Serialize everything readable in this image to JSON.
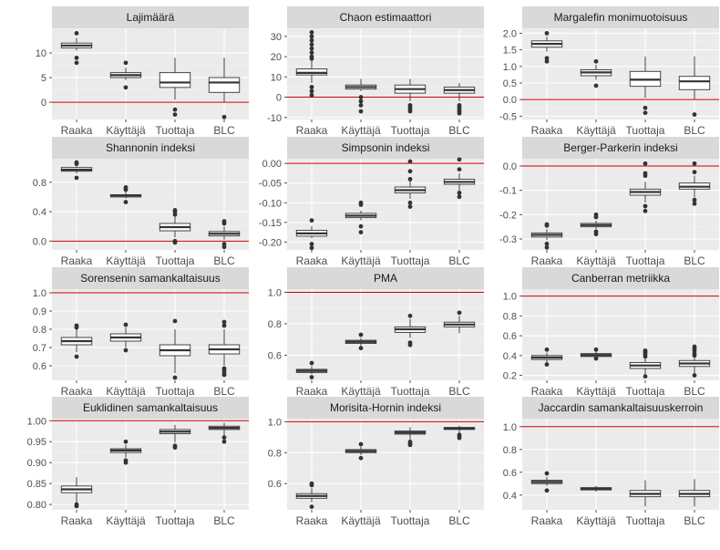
{
  "style": {
    "panel_bg": "#ebebeb",
    "strip_bg": "#d9d9d9",
    "grid_major": "#ffffff",
    "grid_minor": "#f3f3f3",
    "box_fill": "#ffffff",
    "box_line": "#333333",
    "ref_line": "#cc0000",
    "tick_text": "#4d4d4d",
    "strip_text": "#1a1a1a"
  },
  "chart_data": [
    {
      "type": "boxplot",
      "title": "Lajimäärä",
      "categories": [
        "Raaka",
        "Käyttäjä",
        "Tuottaja",
        "BLC"
      ],
      "ylim": [
        -3.5,
        15
      ],
      "yticks": [
        0,
        5,
        10
      ],
      "ytick_labels": [
        "0",
        "5",
        "10"
      ],
      "reference_line": 0,
      "boxes": [
        {
          "min": 10.5,
          "q1": 11,
          "median": 11.5,
          "q3": 12,
          "max": 13,
          "outliers": [
            9,
            8,
            14
          ]
        },
        {
          "min": 4.5,
          "q1": 5,
          "median": 5.5,
          "q3": 6,
          "max": 7,
          "outliers": [
            3,
            8
          ]
        },
        {
          "min": 0.5,
          "q1": 3,
          "median": 4,
          "q3": 6,
          "max": 9,
          "outliers": [
            -1.5,
            -2.5
          ]
        },
        {
          "min": 0,
          "q1": 2,
          "median": 4,
          "q3": 5,
          "max": 9,
          "outliers": [
            -3
          ]
        }
      ]
    },
    {
      "type": "boxplot",
      "title": "Chaon estimaattori",
      "categories": [
        "Raaka",
        "Käyttäjä",
        "Tuottaja",
        "BLC"
      ],
      "ylim": [
        -11,
        34
      ],
      "yticks": [
        -10,
        0,
        10,
        20,
        30
      ],
      "ytick_labels": [
        "-10",
        "0",
        "10",
        "20",
        "30"
      ],
      "reference_line": 0,
      "boxes": [
        {
          "min": 7,
          "q1": 11,
          "median": 12,
          "q3": 14,
          "max": 18,
          "outliers": [
            1,
            3,
            5,
            19,
            20,
            22,
            24,
            26,
            28,
            30,
            32
          ]
        },
        {
          "min": 3,
          "q1": 4,
          "median": 5,
          "q3": 6,
          "max": 9,
          "outliers": [
            0,
            -2,
            -4,
            -7
          ]
        },
        {
          "min": -2,
          "q1": 2,
          "median": 4,
          "q3": 6,
          "max": 9,
          "outliers": [
            -4,
            -5,
            -6,
            -7
          ]
        },
        {
          "min": -2,
          "q1": 2,
          "median": 3.5,
          "q3": 5,
          "max": 7,
          "outliers": [
            -4,
            -5,
            -6,
            -7,
            -8
          ]
        }
      ]
    },
    {
      "type": "boxplot",
      "title": "Margalefin monimuotoisuus",
      "categories": [
        "Raaka",
        "Käyttäjä",
        "Tuottaja",
        "BLC"
      ],
      "ylim": [
        -0.6,
        2.15
      ],
      "yticks": [
        -0.5,
        0,
        0.5,
        1,
        1.5,
        2
      ],
      "ytick_labels": [
        "-0.5",
        "0.0",
        "0.5",
        "1.0",
        "1.5",
        "2.0"
      ],
      "reference_line": 0,
      "boxes": [
        {
          "min": 1.45,
          "q1": 1.58,
          "median": 1.68,
          "q3": 1.77,
          "max": 1.9,
          "outliers": [
            1.25,
            1.15,
            2.0
          ]
        },
        {
          "min": 0.6,
          "q1": 0.72,
          "median": 0.82,
          "q3": 0.9,
          "max": 1.05,
          "outliers": [
            0.42,
            1.15
          ]
        },
        {
          "min": 0.05,
          "q1": 0.4,
          "median": 0.6,
          "q3": 0.85,
          "max": 1.3,
          "outliers": [
            -0.25,
            -0.4
          ]
        },
        {
          "min": 0,
          "q1": 0.3,
          "median": 0.55,
          "q3": 0.7,
          "max": 1.3,
          "outliers": [
            -0.45
          ]
        }
      ]
    },
    {
      "type": "boxplot",
      "title": "Shannonin indeksi",
      "categories": [
        "Raaka",
        "Käyttäjä",
        "Tuottaja",
        "BLC"
      ],
      "ylim": [
        -0.12,
        1.12
      ],
      "yticks": [
        0,
        0.4,
        0.8
      ],
      "ytick_labels": [
        "0.0",
        "0.4",
        "0.8"
      ],
      "reference_line": 0,
      "boxes": [
        {
          "min": 0.92,
          "q1": 0.95,
          "median": 0.97,
          "q3": 1.0,
          "max": 1.02,
          "outliers": [
            0.86,
            1.05,
            1.07
          ]
        },
        {
          "min": 0.58,
          "q1": 0.6,
          "median": 0.62,
          "q3": 0.63,
          "max": 0.67,
          "outliers": [
            0.53,
            0.7,
            0.73
          ]
        },
        {
          "min": 0.05,
          "q1": 0.14,
          "median": 0.19,
          "q3": 0.24,
          "max": 0.33,
          "outliers": [
            0.36,
            0.4,
            0.42,
            0.0,
            -0.02
          ]
        },
        {
          "min": 0.02,
          "q1": 0.07,
          "median": 0.1,
          "q3": 0.13,
          "max": 0.2,
          "outliers": [
            0.24,
            0.27,
            -0.04,
            -0.08
          ]
        }
      ]
    },
    {
      "type": "boxplot",
      "title": "Simpsonin indeksi",
      "categories": [
        "Raaka",
        "Käyttäjä",
        "Tuottaja",
        "BLC"
      ],
      "ylim": [
        -0.22,
        0.012
      ],
      "yticks": [
        -0.2,
        -0.15,
        -0.1,
        -0.05,
        0
      ],
      "ytick_labels": [
        "-0.20",
        "-0.15",
        "-0.10",
        "-0.05",
        "0.00"
      ],
      "reference_line": 0,
      "boxes": [
        {
          "min": -0.19,
          "q1": -0.185,
          "median": -0.178,
          "q3": -0.17,
          "max": -0.16,
          "outliers": [
            -0.145,
            -0.205,
            -0.215
          ]
        },
        {
          "min": -0.145,
          "q1": -0.138,
          "median": -0.133,
          "q3": -0.127,
          "max": -0.12,
          "outliers": [
            -0.1,
            -0.105,
            -0.16,
            -0.175
          ]
        },
        {
          "min": -0.09,
          "q1": -0.075,
          "median": -0.068,
          "q3": -0.06,
          "max": -0.045,
          "outliers": [
            -0.1,
            -0.11,
            -0.04,
            -0.02,
            0.005
          ]
        },
        {
          "min": -0.07,
          "q1": -0.053,
          "median": -0.047,
          "q3": -0.04,
          "max": -0.025,
          "outliers": [
            -0.075,
            -0.085,
            -0.015,
            0.01
          ]
        }
      ]
    },
    {
      "type": "boxplot",
      "title": "Berger-Parkerin indeksi",
      "categories": [
        "Raaka",
        "Käyttäjä",
        "Tuottaja",
        "BLC"
      ],
      "ylim": [
        -0.345,
        0.03
      ],
      "yticks": [
        -0.3,
        -0.2,
        -0.1,
        0
      ],
      "ytick_labels": [
        "-0.3",
        "-0.2",
        "-0.1",
        "0.0"
      ],
      "reference_line": 0,
      "boxes": [
        {
          "min": -0.305,
          "q1": -0.292,
          "median": -0.283,
          "q3": -0.275,
          "max": -0.26,
          "outliers": [
            -0.24,
            -0.245,
            -0.32,
            -0.335
          ]
        },
        {
          "min": -0.26,
          "q1": -0.25,
          "median": -0.243,
          "q3": -0.236,
          "max": -0.225,
          "outliers": [
            -0.2,
            -0.21,
            -0.27,
            -0.28
          ]
        },
        {
          "min": -0.15,
          "q1": -0.12,
          "median": -0.107,
          "q3": -0.095,
          "max": -0.065,
          "outliers": [
            -0.04,
            -0.03,
            0.01,
            -0.165,
            -0.185
          ]
        },
        {
          "min": -0.13,
          "q1": -0.095,
          "median": -0.085,
          "q3": -0.07,
          "max": -0.04,
          "outliers": [
            -0.025,
            0.01,
            -0.14,
            -0.155
          ]
        }
      ]
    },
    {
      "type": "boxplot",
      "title": "Sorensenin samankaltaisuus",
      "categories": [
        "Raaka",
        "Käyttäjä",
        "Tuottaja",
        "BLC"
      ],
      "ylim": [
        0.52,
        1.02
      ],
      "yticks": [
        0.6,
        0.7,
        0.8,
        0.9,
        1
      ],
      "ytick_labels": [
        "0.6",
        "0.7",
        "0.8",
        "0.9",
        "1.0"
      ],
      "reference_line": 1,
      "boxes": [
        {
          "min": 0.675,
          "q1": 0.715,
          "median": 0.735,
          "q3": 0.755,
          "max": 0.8,
          "outliers": [
            0.82,
            0.81,
            0.65
          ]
        },
        {
          "min": 0.7,
          "q1": 0.735,
          "median": 0.755,
          "q3": 0.775,
          "max": 0.81,
          "outliers": [
            0.825,
            0.685
          ]
        },
        {
          "min": 0.56,
          "q1": 0.655,
          "median": 0.685,
          "q3": 0.715,
          "max": 0.8,
          "outliers": [
            0.845,
            0.535
          ]
        },
        {
          "min": 0.6,
          "q1": 0.665,
          "median": 0.69,
          "q3": 0.715,
          "max": 0.8,
          "outliers": [
            0.82,
            0.84,
            0.585,
            0.575,
            0.56,
            0.55
          ]
        }
      ]
    },
    {
      "type": "boxplot",
      "title": "PMA",
      "categories": [
        "Raaka",
        "Käyttäjä",
        "Tuottaja",
        "BLC"
      ],
      "ylim": [
        0.44,
        1.02
      ],
      "yticks": [
        0.6,
        0.8,
        1
      ],
      "ytick_labels": [
        "0.6",
        "0.8",
        "1.0"
      ],
      "reference_line": 1,
      "boxes": [
        {
          "min": 0.48,
          "q1": 0.49,
          "median": 0.5,
          "q3": 0.51,
          "max": 0.53,
          "outliers": [
            0.55,
            0.46
          ]
        },
        {
          "min": 0.66,
          "q1": 0.675,
          "median": 0.685,
          "q3": 0.695,
          "max": 0.71,
          "outliers": [
            0.73,
            0.645
          ]
        },
        {
          "min": 0.71,
          "q1": 0.745,
          "median": 0.765,
          "q3": 0.78,
          "max": 0.83,
          "outliers": [
            0.85,
            0.68,
            0.665
          ]
        },
        {
          "min": 0.74,
          "q1": 0.78,
          "median": 0.795,
          "q3": 0.81,
          "max": 0.85,
          "outliers": [
            0.87
          ]
        }
      ]
    },
    {
      "type": "boxplot",
      "title": "Canberran metriikka",
      "categories": [
        "Raaka",
        "Käyttäjä",
        "Tuottaja",
        "BLC"
      ],
      "ylim": [
        0.15,
        1.07
      ],
      "yticks": [
        0.2,
        0.4,
        0.6,
        0.8,
        1
      ],
      "ytick_labels": [
        "0.2",
        "0.4",
        "0.6",
        "0.8",
        "1.0"
      ],
      "reference_line": 1,
      "boxes": [
        {
          "min": 0.33,
          "q1": 0.36,
          "median": 0.38,
          "q3": 0.4,
          "max": 0.43,
          "outliers": [
            0.46,
            0.31
          ]
        },
        {
          "min": 0.37,
          "q1": 0.39,
          "median": 0.405,
          "q3": 0.42,
          "max": 0.44,
          "outliers": [
            0.46,
            0.37
          ]
        },
        {
          "min": 0.2,
          "q1": 0.27,
          "median": 0.3,
          "q3": 0.33,
          "max": 0.37,
          "outliers": [
            0.39,
            0.41,
            0.43,
            0.44,
            0.45,
            0.19
          ]
        },
        {
          "min": 0.22,
          "q1": 0.29,
          "median": 0.32,
          "q3": 0.35,
          "max": 0.38,
          "outliers": [
            0.4,
            0.42,
            0.45,
            0.47,
            0.49,
            0.2
          ]
        }
      ]
    },
    {
      "type": "boxplot",
      "title": "Euklidinen samankaltaisuus",
      "categories": [
        "Raaka",
        "Käyttäjä",
        "Tuottaja",
        "BLC"
      ],
      "ylim": [
        0.787,
        1.005
      ],
      "yticks": [
        0.8,
        0.85,
        0.9,
        0.95,
        1
      ],
      "ytick_labels": [
        "0.80",
        "0.85",
        "0.90",
        "0.95",
        "1.00"
      ],
      "reference_line": 1,
      "boxes": [
        {
          "min": 0.805,
          "q1": 0.828,
          "median": 0.836,
          "q3": 0.844,
          "max": 0.865,
          "outliers": [
            0.8,
            0.796
          ]
        },
        {
          "min": 0.912,
          "q1": 0.924,
          "median": 0.929,
          "q3": 0.933,
          "max": 0.943,
          "outliers": [
            0.95,
            0.905,
            0.9
          ]
        },
        {
          "min": 0.948,
          "q1": 0.969,
          "median": 0.974,
          "q3": 0.979,
          "max": 0.99,
          "outliers": [
            0.94,
            0.936
          ]
        },
        {
          "min": 0.965,
          "q1": 0.979,
          "median": 0.983,
          "q3": 0.987,
          "max": 0.995,
          "outliers": [
            0.96,
            0.95
          ]
        }
      ]
    },
    {
      "type": "boxplot",
      "title": "Morisita-Hornin indeksi",
      "categories": [
        "Raaka",
        "Käyttäjä",
        "Tuottaja",
        "BLC"
      ],
      "ylim": [
        0.43,
        1.02
      ],
      "yticks": [
        0.6,
        0.8,
        1
      ],
      "ytick_labels": [
        "0.6",
        "0.8",
        "1.0"
      ],
      "reference_line": 1,
      "boxes": [
        {
          "min": 0.48,
          "q1": 0.505,
          "median": 0.52,
          "q3": 0.535,
          "max": 0.57,
          "outliers": [
            0.59,
            0.6,
            0.45
          ]
        },
        {
          "min": 0.785,
          "q1": 0.8,
          "median": 0.81,
          "q3": 0.82,
          "max": 0.84,
          "outliers": [
            0.855,
            0.765
          ]
        },
        {
          "min": 0.885,
          "q1": 0.92,
          "median": 0.93,
          "q3": 0.94,
          "max": 0.965,
          "outliers": [
            0.87,
            0.86,
            0.85
          ]
        },
        {
          "min": 0.925,
          "q1": 0.95,
          "median": 0.958,
          "q3": 0.963,
          "max": 0.975,
          "outliers": [
            0.915,
            0.905,
            0.895
          ]
        }
      ]
    },
    {
      "type": "boxplot",
      "title": "Jaccardin samankaltaisuuskerroin",
      "categories": [
        "Raaka",
        "Käyttäjä",
        "Tuottaja",
        "BLC"
      ],
      "ylim": [
        0.27,
        1.07
      ],
      "yticks": [
        0.4,
        0.6,
        0.8,
        1
      ],
      "ytick_labels": [
        "0.4",
        "0.6",
        "0.8",
        "1.0"
      ],
      "reference_line": 1,
      "boxes": [
        {
          "min": 0.48,
          "q1": 0.5,
          "median": 0.515,
          "q3": 0.53,
          "max": 0.56,
          "outliers": [
            0.59,
            0.44
          ]
        },
        {
          "min": 0.43,
          "q1": 0.445,
          "median": 0.455,
          "q3": 0.465,
          "max": 0.48,
          "outliers": []
        },
        {
          "min": 0.3,
          "q1": 0.385,
          "median": 0.41,
          "q3": 0.44,
          "max": 0.53,
          "outliers": []
        },
        {
          "min": 0.3,
          "q1": 0.385,
          "median": 0.41,
          "q3": 0.44,
          "max": 0.54,
          "outliers": []
        }
      ]
    }
  ]
}
